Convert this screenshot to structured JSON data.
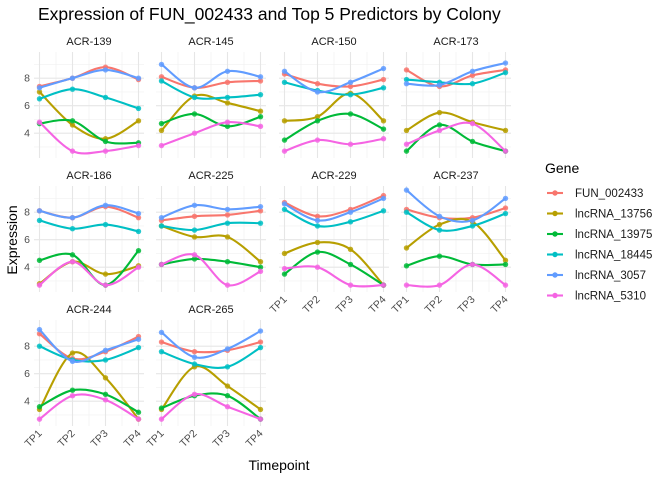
{
  "chart_data": {
    "type": "line",
    "title": "Expression of FUN_002433 and Top 5 Predictors by Colony",
    "xlabel": "Timepoint",
    "ylabel": "Expression",
    "categories": [
      "TP1",
      "TP2",
      "TP3",
      "TP4"
    ],
    "y_ticks": [
      4,
      6,
      8
    ],
    "ylim": [
      2.2,
      9.9
    ],
    "grid": true,
    "legend": {
      "title": "Gene",
      "placement": "right",
      "entries": [
        {
          "name": "FUN_002433",
          "color": "#F8766D"
        },
        {
          "name": "lncRNA_13756",
          "color": "#B79F00"
        },
        {
          "name": "lncRNA_13975",
          "color": "#00BA38"
        },
        {
          "name": "lncRNA_18445",
          "color": "#00BFC4"
        },
        {
          "name": "lncRNA_3057",
          "color": "#619CFF"
        },
        {
          "name": "lncRNA_5310",
          "color": "#F564E3"
        }
      ]
    },
    "facets": [
      {
        "label": "ACR-139",
        "series": [
          {
            "name": "FUN_002433",
            "values": [
              7.4,
              8.0,
              8.8,
              7.9
            ]
          },
          {
            "name": "lncRNA_13756",
            "values": [
              7.0,
              4.6,
              3.6,
              4.9
            ]
          },
          {
            "name": "lncRNA_13975",
            "values": [
              4.7,
              4.9,
              3.4,
              3.3
            ]
          },
          {
            "name": "lncRNA_18445",
            "values": [
              6.5,
              7.2,
              6.6,
              5.8
            ]
          },
          {
            "name": "lncRNA_3057",
            "values": [
              7.3,
              8.0,
              8.6,
              8.0
            ]
          },
          {
            "name": "lncRNA_5310",
            "values": [
              4.8,
              2.7,
              2.7,
              3.1
            ]
          }
        ]
      },
      {
        "label": "ACR-145",
        "series": [
          {
            "name": "FUN_002433",
            "values": [
              8.1,
              7.3,
              7.7,
              7.8
            ]
          },
          {
            "name": "lncRNA_13756",
            "values": [
              4.2,
              6.7,
              6.2,
              5.6
            ]
          },
          {
            "name": "lncRNA_13975",
            "values": [
              4.7,
              5.4,
              4.5,
              5.2
            ]
          },
          {
            "name": "lncRNA_18445",
            "values": [
              7.8,
              6.6,
              6.6,
              6.8
            ]
          },
          {
            "name": "lncRNA_3057",
            "values": [
              9.0,
              7.3,
              8.5,
              8.1
            ]
          },
          {
            "name": "lncRNA_5310",
            "values": [
              3.1,
              4.0,
              4.8,
              4.5
            ]
          }
        ]
      },
      {
        "label": "ACR-150",
        "series": [
          {
            "name": "FUN_002433",
            "values": [
              8.3,
              7.6,
              7.4,
              7.9
            ]
          },
          {
            "name": "lncRNA_13756",
            "values": [
              4.9,
              5.2,
              6.9,
              4.9
            ]
          },
          {
            "name": "lncRNA_13975",
            "values": [
              3.5,
              4.9,
              5.4,
              4.3
            ]
          },
          {
            "name": "lncRNA_18445",
            "values": [
              7.7,
              7.1,
              6.8,
              7.3
            ]
          },
          {
            "name": "lncRNA_3057",
            "values": [
              8.5,
              7.0,
              7.7,
              8.7
            ]
          },
          {
            "name": "lncRNA_5310",
            "values": [
              2.7,
              3.5,
              3.2,
              3.6
            ]
          }
        ]
      },
      {
        "label": "ACR-173",
        "series": [
          {
            "name": "FUN_002433",
            "values": [
              8.6,
              7.4,
              8.2,
              8.6
            ]
          },
          {
            "name": "lncRNA_13756",
            "values": [
              4.2,
              5.5,
              4.8,
              4.2
            ]
          },
          {
            "name": "lncRNA_13975",
            "values": [
              2.7,
              4.6,
              3.4,
              2.7
            ]
          },
          {
            "name": "lncRNA_18445",
            "values": [
              7.9,
              7.7,
              7.6,
              8.4
            ]
          },
          {
            "name": "lncRNA_3057",
            "values": [
              7.6,
              7.5,
              8.5,
              9.1
            ]
          },
          {
            "name": "lncRNA_5310",
            "values": [
              3.2,
              4.2,
              4.7,
              2.7
            ]
          }
        ]
      },
      {
        "label": "ACR-186",
        "series": [
          {
            "name": "FUN_002433",
            "values": [
              8.1,
              7.6,
              8.4,
              7.6
            ]
          },
          {
            "name": "lncRNA_13756",
            "values": [
              2.8,
              4.4,
              3.5,
              4.1
            ]
          },
          {
            "name": "lncRNA_13975",
            "values": [
              4.5,
              4.9,
              2.7,
              5.2
            ]
          },
          {
            "name": "lncRNA_18445",
            "values": [
              7.4,
              6.8,
              7.1,
              6.6
            ]
          },
          {
            "name": "lncRNA_3057",
            "values": [
              8.1,
              7.6,
              8.5,
              7.9
            ]
          },
          {
            "name": "lncRNA_5310",
            "values": [
              2.7,
              4.4,
              2.7,
              4.0
            ]
          }
        ]
      },
      {
        "label": "ACR-225",
        "series": [
          {
            "name": "FUN_002433",
            "values": [
              7.4,
              7.7,
              7.8,
              8.1
            ]
          },
          {
            "name": "lncRNA_13756",
            "values": [
              7.0,
              6.2,
              6.2,
              4.4
            ]
          },
          {
            "name": "lncRNA_13975",
            "values": [
              4.2,
              4.6,
              4.4,
              4.0
            ]
          },
          {
            "name": "lncRNA_18445",
            "values": [
              7.0,
              6.7,
              7.2,
              7.2
            ]
          },
          {
            "name": "lncRNA_3057",
            "values": [
              7.6,
              8.5,
              8.2,
              8.4
            ]
          },
          {
            "name": "lncRNA_5310",
            "values": [
              4.2,
              4.9,
              2.7,
              3.7
            ]
          }
        ]
      },
      {
        "label": "ACR-229",
        "series": [
          {
            "name": "FUN_002433",
            "values": [
              8.7,
              7.7,
              8.2,
              9.2
            ]
          },
          {
            "name": "lncRNA_13756",
            "values": [
              5.0,
              5.8,
              5.3,
              2.7
            ]
          },
          {
            "name": "lncRNA_13975",
            "values": [
              3.5,
              5.1,
              4.2,
              2.7
            ]
          },
          {
            "name": "lncRNA_18445",
            "values": [
              8.2,
              7.0,
              7.3,
              8.1
            ]
          },
          {
            "name": "lncRNA_3057",
            "values": [
              8.6,
              7.4,
              8.0,
              9.0
            ]
          },
          {
            "name": "lncRNA_5310",
            "values": [
              3.9,
              4.0,
              2.7,
              2.7
            ]
          }
        ]
      },
      {
        "label": "ACR-237",
        "series": [
          {
            "name": "FUN_002433",
            "values": [
              8.2,
              7.6,
              7.6,
              8.3
            ]
          },
          {
            "name": "lncRNA_13756",
            "values": [
              5.4,
              7.1,
              7.3,
              4.5
            ]
          },
          {
            "name": "lncRNA_13975",
            "values": [
              4.1,
              4.8,
              4.2,
              4.2
            ]
          },
          {
            "name": "lncRNA_18445",
            "values": [
              8.0,
              6.7,
              7.0,
              7.9
            ]
          },
          {
            "name": "lncRNA_3057",
            "values": [
              9.6,
              7.7,
              7.4,
              9.0
            ]
          },
          {
            "name": "lncRNA_5310",
            "values": [
              2.7,
              2.7,
              4.2,
              2.7
            ]
          }
        ]
      },
      {
        "label": "ACR-244",
        "series": [
          {
            "name": "FUN_002433",
            "values": [
              8.9,
              7.1,
              7.6,
              8.7
            ]
          },
          {
            "name": "lncRNA_13756",
            "values": [
              3.4,
              7.5,
              5.7,
              2.7
            ]
          },
          {
            "name": "lncRNA_13975",
            "values": [
              3.6,
              4.8,
              4.5,
              3.2
            ]
          },
          {
            "name": "lncRNA_18445",
            "values": [
              8.0,
              7.0,
              7.0,
              7.9
            ]
          },
          {
            "name": "lncRNA_3057",
            "values": [
              9.2,
              6.9,
              7.7,
              8.5
            ]
          },
          {
            "name": "lncRNA_5310",
            "values": [
              2.7,
              4.4,
              4.1,
              2.7
            ]
          }
        ]
      },
      {
        "label": "ACR-265",
        "series": [
          {
            "name": "FUN_002433",
            "values": [
              8.3,
              7.6,
              7.7,
              8.3
            ]
          },
          {
            "name": "lncRNA_13756",
            "values": [
              3.4,
              6.5,
              5.1,
              3.4
            ]
          },
          {
            "name": "lncRNA_13975",
            "values": [
              3.5,
              4.4,
              4.4,
              2.7
            ]
          },
          {
            "name": "lncRNA_18445",
            "values": [
              7.6,
              6.7,
              6.5,
              7.9
            ]
          },
          {
            "name": "lncRNA_3057",
            "values": [
              9.0,
              7.2,
              7.8,
              9.1
            ]
          },
          {
            "name": "lncRNA_5310",
            "values": [
              2.7,
              4.5,
              3.6,
              2.7
            ]
          }
        ]
      }
    ]
  }
}
